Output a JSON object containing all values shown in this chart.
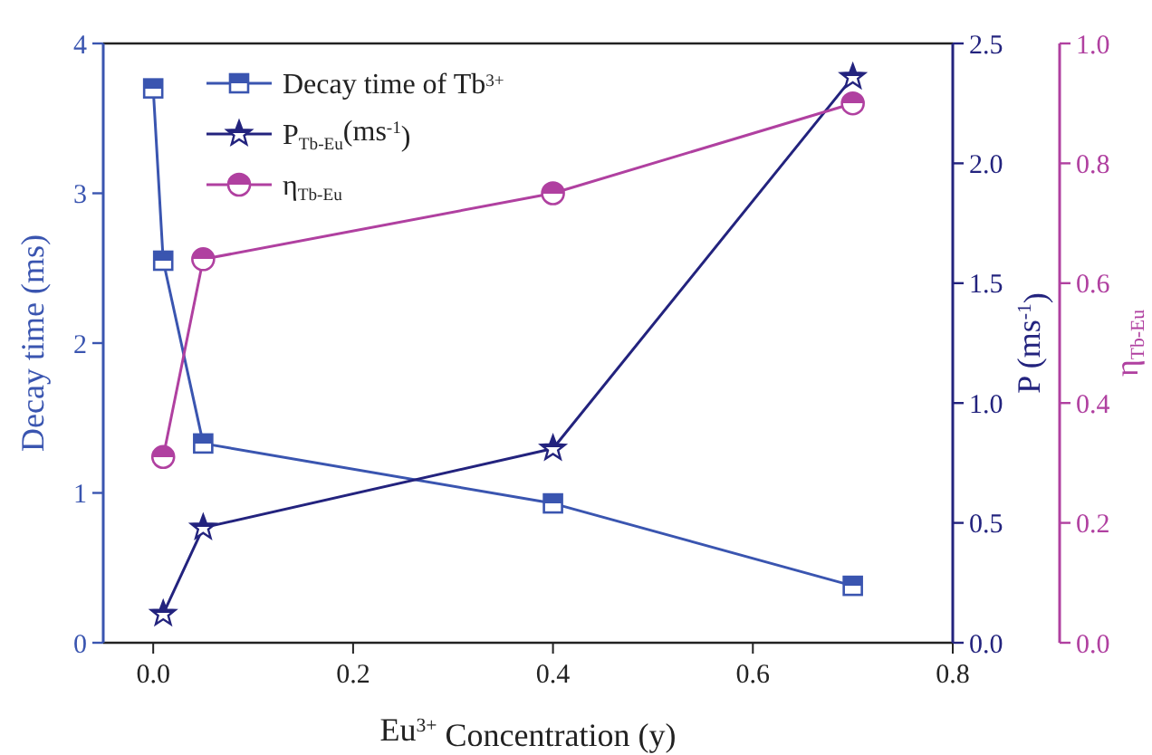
{
  "chart_data": {
    "type": "line",
    "xlabel": "Eu$^{3+}$ Concentration (y)",
    "ylabel": "Decay time (ms)",
    "y2label": "P (ms$^{-1}$)",
    "y3label": "η$_{Tb-Eu}$",
    "xlim": [
      -0.05,
      0.8
    ],
    "xticks": [
      {
        "value": 0,
        "label": "0.0"
      },
      {
        "value": 0.2,
        "label": "0.2"
      },
      {
        "value": 0.4,
        "label": "0.4"
      },
      {
        "value": 0.6,
        "label": "0.6"
      },
      {
        "value": 0.8,
        "label": "0.8"
      }
    ],
    "ylim": [
      0,
      4
    ],
    "yticks": [
      0,
      1,
      2,
      3,
      4
    ],
    "y2lim": [
      0,
      2.5
    ],
    "y2ticks": [
      {
        "value": 0,
        "label": "0.0"
      },
      {
        "value": 0.5,
        "label": "0.5"
      },
      {
        "value": 1,
        "label": "1.0"
      },
      {
        "value": 1.5,
        "label": "1.5"
      },
      {
        "value": 2,
        "label": "2.0"
      },
      {
        "value": 2.5,
        "label": "2.5"
      }
    ],
    "y3lim": [
      0,
      1
    ],
    "y3ticks": [
      {
        "value": 0,
        "label": "0.0"
      },
      {
        "value": 0.2,
        "label": "0.2"
      },
      {
        "value": 0.4,
        "label": "0.4"
      },
      {
        "value": 0.6,
        "label": "0.6"
      },
      {
        "value": 0.8,
        "label": "0.8"
      },
      {
        "value": 1,
        "label": "1.0"
      }
    ],
    "legend": "top left",
    "grid": false,
    "line_style": "solid",
    "series": [
      {
        "name": "Decay time of Tb$^{3+}$",
        "color": "#3a55b0",
        "marker": "square",
        "x": [
          0,
          0.01,
          0.05,
          0.4,
          0.7
        ],
        "values": [
          3.7,
          2.55,
          1.33,
          0.93,
          0.38
        ]
      },
      {
        "name": "P$_{Tb-Eu}$(ms$^{-1}$)",
        "color": "#23237e",
        "marker": "star",
        "axis": "y2",
        "x": [
          0.01,
          0.05,
          0.4,
          0.7
        ],
        "values": [
          0.12,
          0.48,
          0.81,
          2.36
        ]
      },
      {
        "name": "η$_{Tb-Eu}$",
        "color": "#b040a0",
        "marker": "circle",
        "axis": "y3",
        "x": [
          0.01,
          0.05,
          0.4,
          0.7
        ],
        "values": [
          0.31,
          0.64,
          0.75,
          0.9
        ]
      }
    ]
  }
}
